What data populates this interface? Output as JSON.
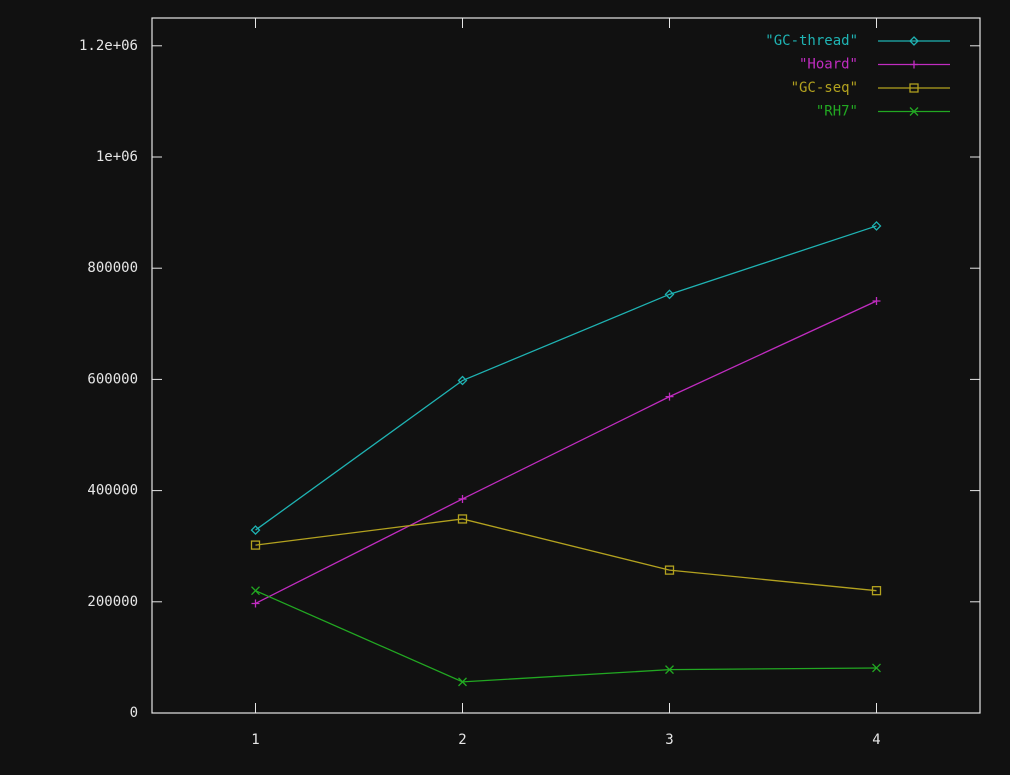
{
  "chart_data": {
    "type": "line",
    "x": [
      1,
      2,
      3,
      4
    ],
    "xlim": [
      0.5,
      4.5
    ],
    "xticks": [
      1,
      2,
      3,
      4
    ],
    "ylim": [
      0,
      1250000
    ],
    "yticks": [
      0,
      200000,
      400000,
      600000,
      800000,
      {
        "value": 1000000,
        "label": "1e+06"
      },
      {
        "value": 1200000,
        "label": "1.2e+06"
      }
    ],
    "legend": "top-right",
    "series": [
      {
        "name": "\"GC-thread\"",
        "color": "#1fb3b3",
        "marker": "diamond",
        "values": [
          329000,
          598000,
          753000,
          876000
        ]
      },
      {
        "name": "\"Hoard\"",
        "color": "#c02cc0",
        "marker": "plus",
        "values": [
          197000,
          385000,
          569000,
          741000
        ]
      },
      {
        "name": "\"GC-seq\"",
        "color": "#b3a21f",
        "marker": "square",
        "values": [
          302000,
          349000,
          257000,
          220000
        ]
      },
      {
        "name": "\"RH7\"",
        "color": "#22a822",
        "marker": "cross",
        "values": [
          220000,
          56000,
          78000,
          81000
        ]
      }
    ]
  }
}
